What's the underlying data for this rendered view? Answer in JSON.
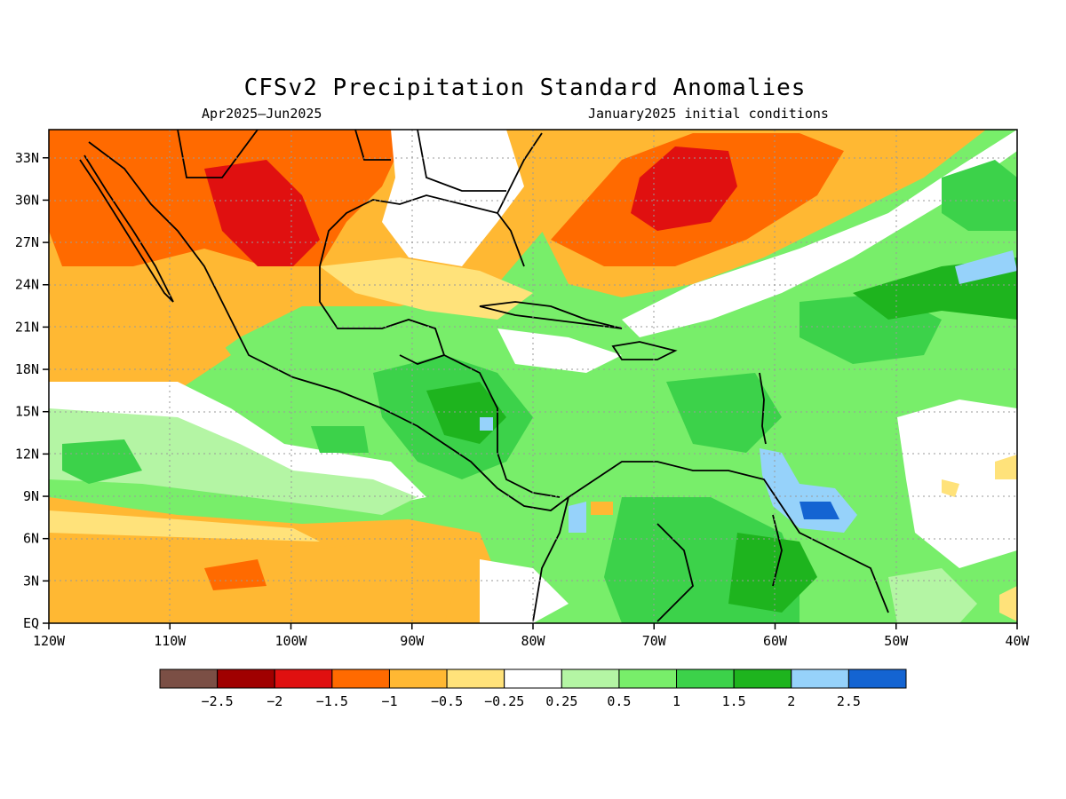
{
  "title": "CFSv2 Precipitation Standard Anomalies",
  "subtitle_left": "Apr2025–Jun2025",
  "subtitle_right": "January2025 initial conditions",
  "x_ticks": [
    "120W",
    "110W",
    "100W",
    "90W",
    "80W",
    "70W",
    "60W",
    "50W",
    "40W"
  ],
  "y_ticks": [
    "33N",
    "30N",
    "27N",
    "24N",
    "21N",
    "18N",
    "15N",
    "12N",
    "9N",
    "6N",
    "3N",
    "EQ"
  ],
  "legend": {
    "labels": [
      "−2.5",
      "−2",
      "−1.5",
      "−1",
      "−0.5",
      "−0.25",
      "0.25",
      "0.5",
      "1",
      "1.5",
      "2",
      "2.5"
    ],
    "colors": [
      "#7b4f45",
      "#a00000",
      "#e01010",
      "#ff6a00",
      "#ffb833",
      "#ffe27a",
      "#ffffff",
      "#b4f5a4",
      "#78ee6a",
      "#3cd24a",
      "#1eb41e",
      "#96d2fa",
      "#1464d2"
    ]
  }
}
